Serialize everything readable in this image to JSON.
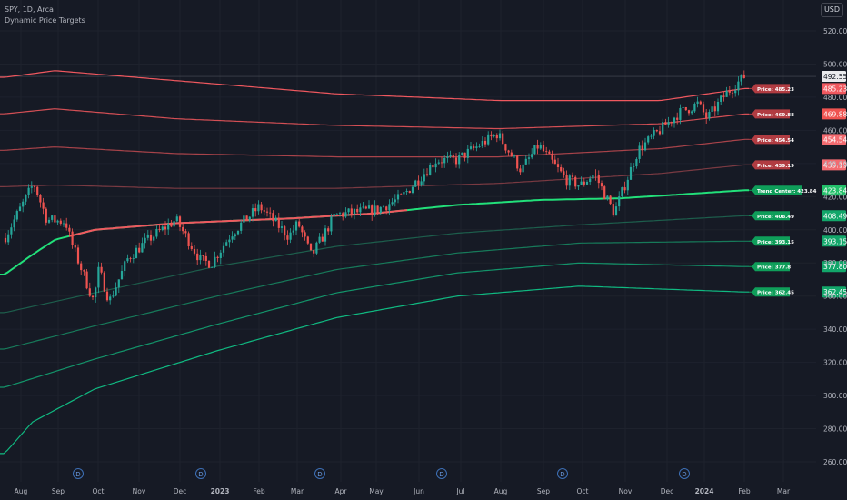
{
  "header": {
    "symbol_line": "SPY, 1D, Arca",
    "indicator_name": "Dynamic Price Targets"
  },
  "currency_button": "USD",
  "colors": {
    "background": "#161a25",
    "grid": "#1e222d",
    "up_candle": "#26a69a",
    "down_candle": "#ef5350",
    "resistance": "#f0585f",
    "support": "#10b981",
    "center": "#22e07a",
    "axis_text": "#b2b5be"
  },
  "chart_data": {
    "type": "candlestick",
    "title": "SPY, 1D, Arca",
    "subtitle": "Dynamic Price Targets",
    "ylim": [
      255,
      530
    ],
    "y_ticks": [
      260,
      280,
      300,
      320,
      340,
      360,
      380,
      400,
      420,
      440,
      460,
      480,
      500,
      520
    ],
    "x_ticks": [
      {
        "label": "Aug",
        "bold": false
      },
      {
        "label": "Sep",
        "bold": false
      },
      {
        "label": "Oct",
        "bold": false
      },
      {
        "label": "Nov",
        "bold": false
      },
      {
        "label": "Dec",
        "bold": false
      },
      {
        "label": "2023",
        "bold": true
      },
      {
        "label": "Feb",
        "bold": false
      },
      {
        "label": "Mar",
        "bold": false
      },
      {
        "label": "Apr",
        "bold": false
      },
      {
        "label": "May",
        "bold": false
      },
      {
        "label": "Jun",
        "bold": false
      },
      {
        "label": "Jul",
        "bold": false
      },
      {
        "label": "Aug",
        "bold": false
      },
      {
        "label": "Sep",
        "bold": false
      },
      {
        "label": "Oct",
        "bold": false
      },
      {
        "label": "Nov",
        "bold": false
      },
      {
        "label": "Dec",
        "bold": false
      },
      {
        "label": "2024",
        "bold": true
      },
      {
        "label": "Feb",
        "bold": false
      },
      {
        "label": "Mar",
        "bold": false
      }
    ],
    "dividend_markers": [
      "D",
      "D",
      "D",
      "D",
      "D",
      "D"
    ],
    "price_path": [
      {
        "x": "2022-07-25",
        "y": 395
      },
      {
        "x": "2022-08-16",
        "y": 428
      },
      {
        "x": "2022-08-26",
        "y": 406
      },
      {
        "x": "2022-09-09",
        "y": 405
      },
      {
        "x": "2022-09-13",
        "y": 393
      },
      {
        "x": "2022-09-30",
        "y": 357
      },
      {
        "x": "2022-10-04",
        "y": 376
      },
      {
        "x": "2022-10-12",
        "y": 357
      },
      {
        "x": "2022-10-26",
        "y": 383
      },
      {
        "x": "2022-11-10",
        "y": 394
      },
      {
        "x": "2022-12-01",
        "y": 406
      },
      {
        "x": "2022-12-20",
        "y": 381
      },
      {
        "x": "2022-12-28",
        "y": 380
      },
      {
        "x": "2023-01-12",
        "y": 398
      },
      {
        "x": "2023-02-02",
        "y": 414
      },
      {
        "x": "2023-02-24",
        "y": 396
      },
      {
        "x": "2023-03-03",
        "y": 404
      },
      {
        "x": "2023-03-13",
        "y": 384
      },
      {
        "x": "2023-03-31",
        "y": 409
      },
      {
        "x": "2023-05-01",
        "y": 412
      },
      {
        "x": "2023-05-19",
        "y": 419
      },
      {
        "x": "2023-06-15",
        "y": 442
      },
      {
        "x": "2023-06-30",
        "y": 442
      },
      {
        "x": "2023-07-31",
        "y": 458
      },
      {
        "x": "2023-08-18",
        "y": 436
      },
      {
        "x": "2023-08-31",
        "y": 451
      },
      {
        "x": "2023-09-21",
        "y": 430
      },
      {
        "x": "2023-10-02",
        "y": 427
      },
      {
        "x": "2023-10-12",
        "y": 434
      },
      {
        "x": "2023-10-27",
        "y": 410
      },
      {
        "x": "2023-11-14",
        "y": 448
      },
      {
        "x": "2023-12-14",
        "y": 470
      },
      {
        "x": "2023-12-29",
        "y": 476
      },
      {
        "x": "2024-01-05",
        "y": 467
      },
      {
        "x": "2024-01-19",
        "y": 482
      },
      {
        "x": "2024-02-02",
        "y": 492.55
      }
    ],
    "last_price": "492.55",
    "target_bands": [
      {
        "label": "Price: 485.23",
        "axis": "485.23",
        "color": "#f0585f",
        "path": [
          {
            "x": "2022-07-25",
            "y": 492
          },
          {
            "x": "2022-09-01",
            "y": 496
          },
          {
            "x": "2022-12-01",
            "y": 490
          },
          {
            "x": "2023-04-01",
            "y": 482
          },
          {
            "x": "2023-08-01",
            "y": 478
          },
          {
            "x": "2023-12-01",
            "y": 478
          },
          {
            "x": "2024-02-02",
            "y": 485.23
          }
        ]
      },
      {
        "label": "Price: 469.88",
        "axis": "469.88",
        "color": "#d44f55",
        "path": [
          {
            "x": "2022-07-25",
            "y": 470
          },
          {
            "x": "2022-09-01",
            "y": 473
          },
          {
            "x": "2022-12-01",
            "y": 467
          },
          {
            "x": "2023-04-01",
            "y": 463
          },
          {
            "x": "2023-08-01",
            "y": 461
          },
          {
            "x": "2023-12-01",
            "y": 464
          },
          {
            "x": "2024-02-02",
            "y": 469.88
          }
        ]
      },
      {
        "label": "Price: 454.54",
        "axis": "454.54",
        "color": "#a8434a",
        "path": [
          {
            "x": "2022-07-25",
            "y": 448
          },
          {
            "x": "2022-09-01",
            "y": 450
          },
          {
            "x": "2022-12-01",
            "y": 446
          },
          {
            "x": "2023-04-01",
            "y": 444
          },
          {
            "x": "2023-08-01",
            "y": 444
          },
          {
            "x": "2023-12-01",
            "y": 449
          },
          {
            "x": "2024-02-02",
            "y": 454.54
          }
        ]
      },
      {
        "label": "Price: 439.19",
        "axis": "439.19",
        "color": "#7a3a42",
        "path": [
          {
            "x": "2022-07-25",
            "y": 426
          },
          {
            "x": "2022-09-01",
            "y": 427
          },
          {
            "x": "2022-12-01",
            "y": 425
          },
          {
            "x": "2023-04-01",
            "y": 425
          },
          {
            "x": "2023-08-01",
            "y": 428
          },
          {
            "x": "2023-12-01",
            "y": 434
          },
          {
            "x": "2024-02-02",
            "y": 439.19
          }
        ]
      },
      {
        "label": "Trend Center: 423.84",
        "axis": "423.84",
        "color": "#22e07a",
        "path": [
          {
            "x": "2022-07-25",
            "y": 373
          },
          {
            "x": "2022-08-15",
            "y": 385
          },
          {
            "x": "2022-09-01",
            "y": 394
          },
          {
            "x": "2022-10-01",
            "y": 400
          },
          {
            "x": "2022-12-01",
            "y": 404
          },
          {
            "x": "2023-03-01",
            "y": 407
          },
          {
            "x": "2023-05-01",
            "y": 410
          },
          {
            "x": "2023-07-01",
            "y": 415
          },
          {
            "x": "2023-09-01",
            "y": 418
          },
          {
            "x": "2023-11-01",
            "y": 419
          },
          {
            "x": "2024-02-02",
            "y": 423.84
          }
        ]
      },
      {
        "label": "Price: 408.49",
        "axis": "408.49",
        "color": "#1d5e4c",
        "path": [
          {
            "x": "2022-07-25",
            "y": 350
          },
          {
            "x": "2022-10-01",
            "y": 362
          },
          {
            "x": "2023-01-01",
            "y": 378
          },
          {
            "x": "2023-04-01",
            "y": 390
          },
          {
            "x": "2023-07-01",
            "y": 398
          },
          {
            "x": "2023-10-01",
            "y": 403
          },
          {
            "x": "2024-02-02",
            "y": 408.49
          }
        ]
      },
      {
        "label": "Price: 393.15",
        "axis": "393.15",
        "color": "#177a5a",
        "path": [
          {
            "x": "2022-07-25",
            "y": 328
          },
          {
            "x": "2022-10-01",
            "y": 342
          },
          {
            "x": "2023-01-01",
            "y": 360
          },
          {
            "x": "2023-04-01",
            "y": 376
          },
          {
            "x": "2023-07-01",
            "y": 386
          },
          {
            "x": "2023-10-01",
            "y": 392
          },
          {
            "x": "2024-02-02",
            "y": 393.15
          }
        ]
      },
      {
        "label": "Price: 377.8",
        "axis": "377.80",
        "color": "#13946a",
        "path": [
          {
            "x": "2022-07-25",
            "y": 305
          },
          {
            "x": "2022-10-01",
            "y": 322
          },
          {
            "x": "2023-01-01",
            "y": 343
          },
          {
            "x": "2023-04-01",
            "y": 362
          },
          {
            "x": "2023-07-01",
            "y": 374
          },
          {
            "x": "2023-10-01",
            "y": 380
          },
          {
            "x": "2024-02-02",
            "y": 377.8
          }
        ]
      },
      {
        "label": "Price: 362.45",
        "axis": "362.45",
        "color": "#10b981",
        "path": [
          {
            "x": "2022-07-25",
            "y": 265
          },
          {
            "x": "2022-08-15",
            "y": 284
          },
          {
            "x": "2022-10-01",
            "y": 304
          },
          {
            "x": "2023-01-01",
            "y": 327
          },
          {
            "x": "2023-04-01",
            "y": 347
          },
          {
            "x": "2023-07-01",
            "y": 360
          },
          {
            "x": "2023-10-01",
            "y": 366
          },
          {
            "x": "2024-02-02",
            "y": 362.45
          }
        ]
      }
    ]
  }
}
